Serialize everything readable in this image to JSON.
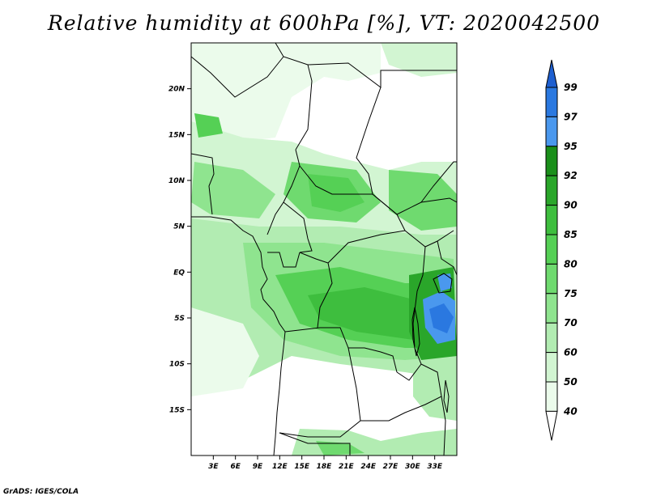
{
  "title": "Relative humidity at 600hPa [%], VT: 2020042500",
  "credit": "GrADS: IGES/COLA",
  "map": {
    "lon_range": [
      0,
      36
    ],
    "lat_range": [
      -20,
      25
    ],
    "lat_ticks": [
      {
        "lat": 20,
        "label": "20N"
      },
      {
        "lat": 15,
        "label": "15N"
      },
      {
        "lat": 10,
        "label": "10N"
      },
      {
        "lat": 5,
        "label": "5N"
      },
      {
        "lat": 0,
        "label": "EQ"
      },
      {
        "lat": -5,
        "label": "5S"
      },
      {
        "lat": -10,
        "label": "10S"
      },
      {
        "lat": -15,
        "label": "15S"
      }
    ],
    "lon_ticks": [
      {
        "lon": 3,
        "label": "3E"
      },
      {
        "lon": 6,
        "label": "6E"
      },
      {
        "lon": 9,
        "label": "9E"
      },
      {
        "lon": 12,
        "label": "12E"
      },
      {
        "lon": 15,
        "label": "15E"
      },
      {
        "lon": 18,
        "label": "18E"
      },
      {
        "lon": 21,
        "label": "21E"
      },
      {
        "lon": 24,
        "label": "24E"
      },
      {
        "lon": 27,
        "label": "27E"
      },
      {
        "lon": 30,
        "label": "30E"
      },
      {
        "lon": 33,
        "label": "33E"
      }
    ]
  },
  "colorbar": {
    "levels": [
      {
        "label": "99",
        "color": "#1e5fd0"
      },
      {
        "label": "97",
        "color": "#2a78e0"
      },
      {
        "label": "95",
        "color": "#4a98ee"
      },
      {
        "label": "92",
        "color": "#1a8f1a"
      },
      {
        "label": "90",
        "color": "#2aa62a"
      },
      {
        "label": "85",
        "color": "#3ebe3e"
      },
      {
        "label": "80",
        "color": "#55d055"
      },
      {
        "label": "75",
        "color": "#6fda6f"
      },
      {
        "label": "70",
        "color": "#8fe48f"
      },
      {
        "label": "60",
        "color": "#b2ecb2"
      },
      {
        "label": "50",
        "color": "#d2f5d2"
      },
      {
        "label": "40",
        "color": "#ebfbeb"
      }
    ]
  }
}
